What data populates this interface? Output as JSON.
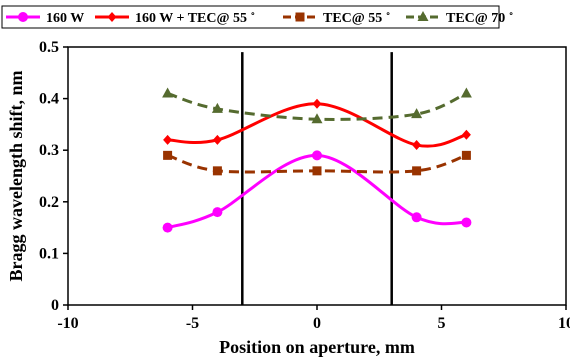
{
  "chart_data": {
    "type": "line",
    "xlabel": "Position on aperture, mm",
    "ylabel": "Bragg wavelength shift, nm",
    "xlim": [
      -10,
      10
    ],
    "ylim": [
      0,
      0.5
    ],
    "xticks": [
      -10,
      -5,
      0,
      5,
      10
    ],
    "yticks": [
      0,
      0.1,
      0.2,
      0.3,
      0.4,
      0.5
    ],
    "xtick_labels": [
      "-10",
      "-5",
      "0",
      "5",
      "10"
    ],
    "ytick_labels": [
      "0",
      "0.1",
      "0.2",
      "0.3",
      "0.4",
      "0.5"
    ],
    "grid": false,
    "legend_position": "top",
    "vertical_lines": [
      -3,
      3
    ],
    "series": [
      {
        "name": "160 W",
        "color": "#ff00ff",
        "line_style": "solid",
        "marker": "circle",
        "x": [
          -6,
          -4,
          0,
          4,
          6
        ],
        "y": [
          0.15,
          0.18,
          0.29,
          0.17,
          0.16
        ]
      },
      {
        "name": "160 W + TEC@ 55 ˚",
        "color": "#ff0000",
        "line_style": "solid",
        "marker": "diamond",
        "x": [
          -6,
          -4,
          0,
          4,
          6
        ],
        "y": [
          0.32,
          0.32,
          0.39,
          0.31,
          0.33
        ]
      },
      {
        "name": "TEC@ 55 ˚",
        "color": "#993300",
        "line_style": "dashed",
        "marker": "square",
        "x": [
          -6,
          -4,
          0,
          4,
          6
        ],
        "y": [
          0.29,
          0.26,
          0.26,
          0.26,
          0.29
        ]
      },
      {
        "name": "TEC@ 70 ˚",
        "color": "#556b2f",
        "line_style": "dashed",
        "marker": "triangle",
        "x": [
          -6,
          -4,
          0,
          4,
          6
        ],
        "y": [
          0.41,
          0.38,
          0.36,
          0.37,
          0.41
        ]
      }
    ]
  }
}
